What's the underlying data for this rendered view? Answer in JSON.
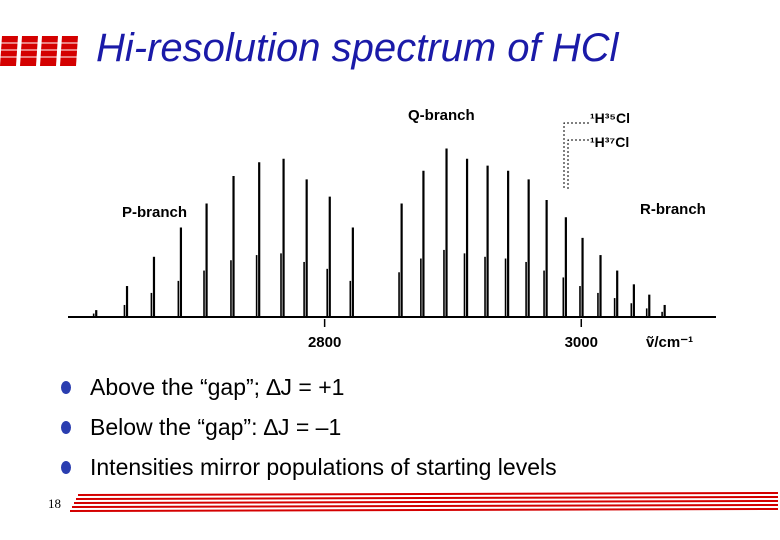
{
  "slide": {
    "title": "Hi-resolution spectrum of HCl",
    "page_number": "18",
    "bullets": [
      "Above the “gap”; ∆J = +1",
      "Below the “gap”: ∆J = –1",
      "Intensities mirror populations of starting levels"
    ],
    "colors": {
      "title": "#1a1aa8",
      "logo": "#d40000",
      "bullet_dot": "#2a3db0",
      "rule": "#d40000"
    }
  },
  "chart_data": {
    "type": "line",
    "x_axis": {
      "label": "ṽ/cm⁻¹",
      "ticks": [
        2800,
        3000
      ],
      "range": [
        2600,
        3105
      ]
    },
    "y_axis": {
      "label": "",
      "range": [
        0,
        1
      ]
    },
    "grid": false,
    "annotations": {
      "q_branch": "Q-branch",
      "p_branch": "P-branch",
      "r_branch": "R-branch",
      "isotope_35": "¹H³⁵Cl",
      "isotope_37": "¹H³⁷Cl"
    },
    "series": [
      {
        "name": "¹H³⁵Cl",
        "points": [
          {
            "x": 2622,
            "y": 0.04
          },
          {
            "x": 2646,
            "y": 0.18
          },
          {
            "x": 2667,
            "y": 0.35
          },
          {
            "x": 2688,
            "y": 0.52
          },
          {
            "x": 2708,
            "y": 0.66
          },
          {
            "x": 2729,
            "y": 0.82
          },
          {
            "x": 2749,
            "y": 0.9
          },
          {
            "x": 2768,
            "y": 0.92
          },
          {
            "x": 2786,
            "y": 0.8
          },
          {
            "x": 2804,
            "y": 0.7
          },
          {
            "x": 2822,
            "y": 0.52
          },
          {
            "x": 2860,
            "y": 0.66
          },
          {
            "x": 2877,
            "y": 0.85
          },
          {
            "x": 2895,
            "y": 0.98
          },
          {
            "x": 2911,
            "y": 0.92
          },
          {
            "x": 2927,
            "y": 0.88
          },
          {
            "x": 2943,
            "y": 0.85
          },
          {
            "x": 2959,
            "y": 0.8
          },
          {
            "x": 2973,
            "y": 0.68
          },
          {
            "x": 2988,
            "y": 0.58
          },
          {
            "x": 3001,
            "y": 0.46
          },
          {
            "x": 3015,
            "y": 0.36
          },
          {
            "x": 3028,
            "y": 0.27
          },
          {
            "x": 3041,
            "y": 0.19
          },
          {
            "x": 3053,
            "y": 0.13
          },
          {
            "x": 3065,
            "y": 0.07
          }
        ]
      },
      {
        "name": "¹H³⁷Cl",
        "points": [
          {
            "x": 2620,
            "y": 0.02
          },
          {
            "x": 2644,
            "y": 0.07
          },
          {
            "x": 2665,
            "y": 0.14
          },
          {
            "x": 2686,
            "y": 0.21
          },
          {
            "x": 2706,
            "y": 0.27
          },
          {
            "x": 2727,
            "y": 0.33
          },
          {
            "x": 2747,
            "y": 0.36
          },
          {
            "x": 2766,
            "y": 0.37
          },
          {
            "x": 2784,
            "y": 0.32
          },
          {
            "x": 2802,
            "y": 0.28
          },
          {
            "x": 2820,
            "y": 0.21
          },
          {
            "x": 2858,
            "y": 0.26
          },
          {
            "x": 2875,
            "y": 0.34
          },
          {
            "x": 2893,
            "y": 0.39
          },
          {
            "x": 2909,
            "y": 0.37
          },
          {
            "x": 2925,
            "y": 0.35
          },
          {
            "x": 2941,
            "y": 0.34
          },
          {
            "x": 2957,
            "y": 0.32
          },
          {
            "x": 2971,
            "y": 0.27
          },
          {
            "x": 2986,
            "y": 0.23
          },
          {
            "x": 2999,
            "y": 0.18
          },
          {
            "x": 3013,
            "y": 0.14
          },
          {
            "x": 3026,
            "y": 0.11
          },
          {
            "x": 3039,
            "y": 0.08
          },
          {
            "x": 3051,
            "y": 0.05
          },
          {
            "x": 3063,
            "y": 0.03
          }
        ]
      }
    ]
  }
}
